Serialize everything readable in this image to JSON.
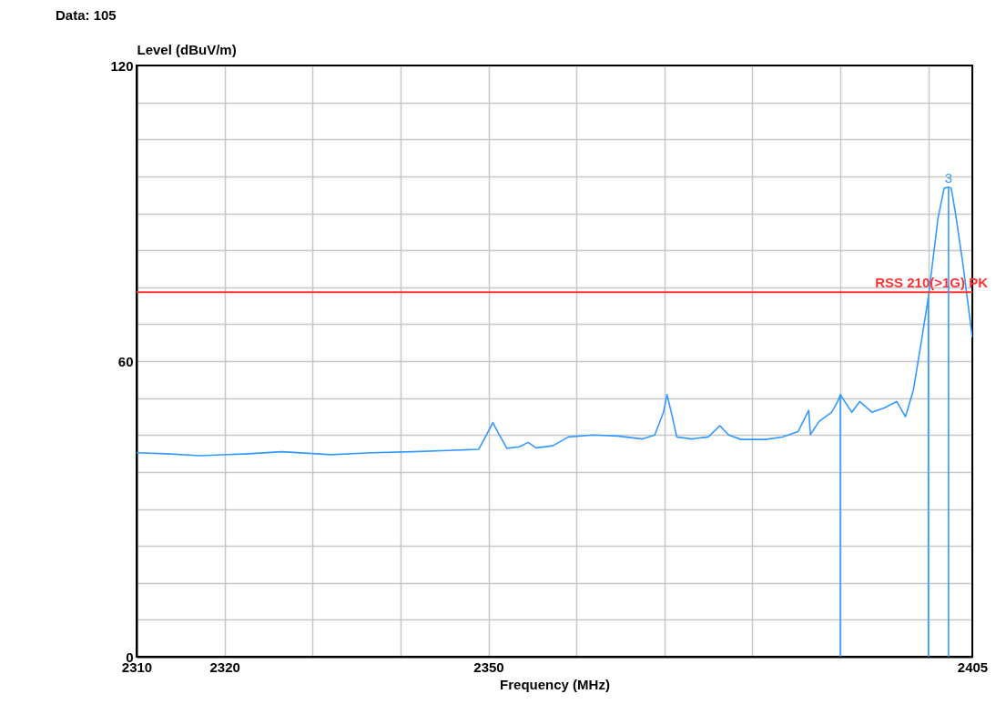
{
  "chart_data": {
    "type": "line",
    "title": "Data: 105",
    "xlabel": "Frequency (MHz)",
    "ylabel": "Level (dBuV/m)",
    "x": [
      2310.0,
      2313.4,
      2317.2,
      2322.8,
      2326.5,
      2332.1,
      2336.8,
      2341.4,
      2346.1,
      2348.9,
      2349.8,
      2350.5,
      2351.2,
      2352.1,
      2353.5,
      2354.5,
      2355.4,
      2357.3,
      2359.1,
      2361.9,
      2364.7,
      2367.5,
      2368.9,
      2369.9,
      2370.3,
      2370.9,
      2371.4,
      2373.1,
      2375.0,
      2376.3,
      2377.3,
      2378.7,
      2381.5,
      2383.4,
      2385.2,
      2386.4,
      2386.6,
      2387.6,
      2389.0,
      2389.7,
      2390.0,
      2391.3,
      2392.2,
      2393.6,
      2395.0,
      2396.4,
      2397.4,
      2398.3,
      2399.2,
      2400.0,
      2401.1,
      2401.8,
      2402.3,
      2402.6,
      2403.1,
      2403.9,
      2405.0
    ],
    "series": [
      {
        "color": "#3399ff",
        "values": [
          41.4,
          41.2,
          40.8,
          41.2,
          41.6,
          41.0,
          41.4,
          41.6,
          41.9,
          42.1,
          45.1,
          47.5,
          45.1,
          42.3,
          42.6,
          43.5,
          42.4,
          42.8,
          44.6,
          45.0,
          44.8,
          44.2,
          45.0,
          49.6,
          53.2,
          48.7,
          44.6,
          44.2,
          44.6,
          46.9,
          45.0,
          44.1,
          44.1,
          44.6,
          45.7,
          50.0,
          45.1,
          47.8,
          49.6,
          51.8,
          53.2,
          49.6,
          51.8,
          49.6,
          50.5,
          51.8,
          48.7,
          54.1,
          63.9,
          72.9,
          89.0,
          95.1,
          95.3,
          95.1,
          89.9,
          80.1,
          64.8
        ]
      }
    ],
    "xlim": [
      2310,
      2405
    ],
    "xticks": [
      2310,
      2320,
      {
        "value": 2330,
        "label": null
      },
      {
        "value": 2340,
        "label": null
      },
      2350,
      {
        "value": 2360,
        "label": null
      },
      {
        "value": 2370,
        "label": null
      },
      {
        "value": 2380,
        "label": null
      },
      {
        "value": 2390,
        "label": null
      },
      {
        "value": 2400,
        "label": null
      },
      2405
    ],
    "ylim": [
      0,
      120
    ],
    "yticks": [
      0,
      {
        "value": 7.5,
        "label": null
      },
      {
        "value": 15,
        "label": null
      },
      {
        "value": 22.5,
        "label": null
      },
      {
        "value": 30,
        "label": null
      },
      {
        "value": 37.5,
        "label": null
      },
      {
        "value": 45,
        "label": null
      },
      {
        "value": 52.5,
        "label": null
      },
      60,
      {
        "value": 67.5,
        "label": null
      },
      {
        "value": 75,
        "label": null
      },
      {
        "value": 82.5,
        "label": null
      },
      {
        "value": 90,
        "label": null
      },
      {
        "value": 97.5,
        "label": null
      },
      {
        "value": 105,
        "label": null
      },
      {
        "value": 112.5,
        "label": null
      },
      120
    ],
    "ref_lines": [
      {
        "axis": "y",
        "value": 74,
        "label": "RSS 210(>1G) PK",
        "color": "#ff3333"
      },
      {
        "axis": "x",
        "value": 2390.0,
        "label": null,
        "color": "#3399ff"
      },
      {
        "axis": "x",
        "value": 2400.0,
        "label": null,
        "color": "#3399ff"
      },
      {
        "axis": "x",
        "value": 2402.3,
        "label": null,
        "color": "#3399ff"
      }
    ],
    "annotations": [
      {
        "text": "3",
        "x": 2402.3,
        "y": 95.3
      }
    ],
    "grid": true,
    "marker": "none",
    "line_style": "solid"
  }
}
